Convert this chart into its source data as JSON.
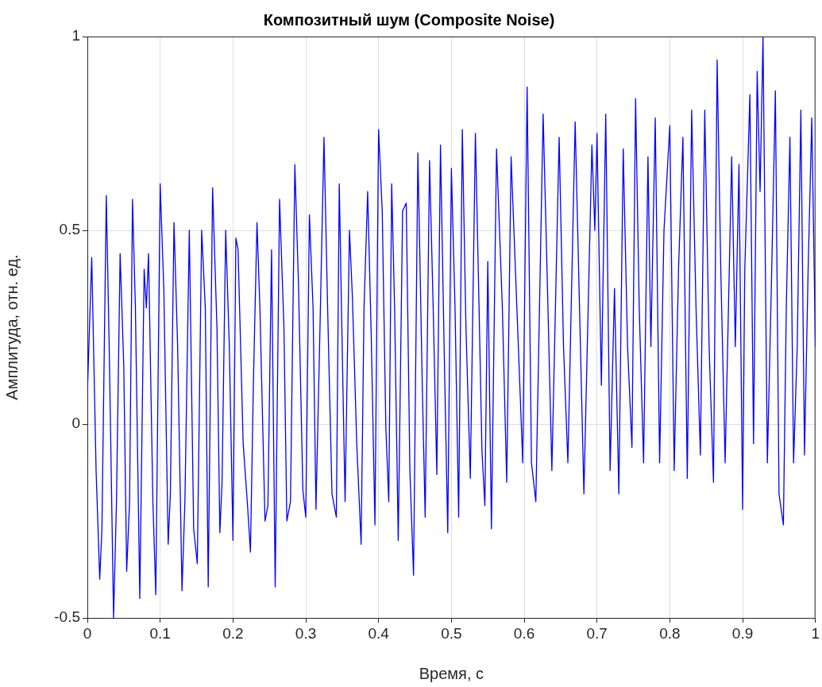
{
  "chart_data": {
    "type": "line",
    "title": "Композитный шум (Composite Noise)",
    "xlabel": "Время, с",
    "ylabel": "Амплитуда, отн. ед.",
    "xlim": [
      0,
      1
    ],
    "xticks": [
      0,
      0.1,
      0.2,
      0.3,
      0.4,
      0.5,
      0.6,
      0.7,
      0.8,
      0.9,
      1
    ],
    "ylim": [
      -0.5,
      1
    ],
    "yticks": [
      -0.5,
      0,
      0.5,
      1
    ],
    "grid": true,
    "legend": false,
    "marker": "none",
    "line_style": "solid",
    "x": [
      0,
      0.006,
      0.012,
      0.017,
      0.02,
      0.026,
      0.03,
      0.036,
      0.04,
      0.045,
      0.05,
      0.054,
      0.058,
      0.062,
      0.066,
      0.072,
      0.078,
      0.081,
      0.084,
      0.09,
      0.094,
      0.1,
      0.105,
      0.111,
      0.114,
      0.119,
      0.124,
      0.13,
      0.134,
      0.14,
      0.146,
      0.151,
      0.157,
      0.162,
      0.166,
      0.172,
      0.178,
      0.182,
      0.185,
      0.19,
      0.195,
      0.2,
      0.204,
      0.207,
      0.214,
      0.22,
      0.224,
      0.228,
      0.233,
      0.237,
      0.244,
      0.248,
      0.253,
      0.258,
      0.264,
      0.27,
      0.274,
      0.279,
      0.285,
      0.29,
      0.296,
      0.3,
      0.305,
      0.31,
      0.314,
      0.32,
      0.325,
      0.33,
      0.336,
      0.342,
      0.346,
      0.35,
      0.354,
      0.36,
      0.364,
      0.37,
      0.376,
      0.38,
      0.385,
      0.39,
      0.395,
      0.4,
      0.405,
      0.41,
      0.414,
      0.418,
      0.422,
      0.427,
      0.433,
      0.438,
      0.443,
      0.448,
      0.454,
      0.46,
      0.464,
      0.47,
      0.475,
      0.48,
      0.485,
      0.49,
      0.495,
      0.5,
      0.505,
      0.51,
      0.515,
      0.52,
      0.526,
      0.533,
      0.538,
      0.542,
      0.546,
      0.55,
      0.555,
      0.562,
      0.57,
      0.576,
      0.582,
      0.592,
      0.598,
      0.604,
      0.61,
      0.616,
      0.626,
      0.632,
      0.638,
      0.648,
      0.654,
      0.66,
      0.67,
      0.676,
      0.682,
      0.693,
      0.697,
      0.7,
      0.706,
      0.712,
      0.718,
      0.724,
      0.73,
      0.736,
      0.742,
      0.748,
      0.753,
      0.758,
      0.764,
      0.77,
      0.774,
      0.78,
      0.786,
      0.792,
      0.8,
      0.806,
      0.812,
      0.818,
      0.824,
      0.83,
      0.836,
      0.842,
      0.848,
      0.854,
      0.86,
      0.865,
      0.87,
      0.876,
      0.885,
      0.89,
      0.895,
      0.9,
      0.903,
      0.91,
      0.915,
      0.92,
      0.924,
      0.928,
      0.934,
      0.94,
      0.945,
      0.95,
      0.956,
      0.96,
      0.965,
      0.97,
      0.975,
      0.98,
      0.985,
      0.99,
      0.995,
      1
    ],
    "values": [
      0.08,
      0.43,
      -0.12,
      -0.4,
      -0.27,
      0.59,
      0.2,
      -0.5,
      -0.2,
      0.44,
      0.15,
      -0.38,
      -0.2,
      0.58,
      0.3,
      -0.45,
      0.4,
      0.3,
      0.44,
      -0.2,
      -0.44,
      0.62,
      0.35,
      -0.31,
      -0.18,
      0.52,
      0.2,
      -0.43,
      -0.2,
      0.5,
      -0.27,
      -0.36,
      0.5,
      0.3,
      -0.42,
      0.61,
      0.25,
      -0.28,
      -0.15,
      0.5,
      0.2,
      -0.3,
      0.48,
      0.45,
      -0.05,
      -0.21,
      -0.33,
      0.1,
      0.52,
      0.3,
      -0.25,
      -0.21,
      0.45,
      -0.42,
      0.58,
      0.25,
      -0.25,
      -0.2,
      0.67,
      0.36,
      -0.17,
      -0.24,
      0.54,
      0.3,
      -0.22,
      0.29,
      0.74,
      0.3,
      -0.18,
      -0.24,
      0.62,
      0.2,
      -0.2,
      0.5,
      0.33,
      -0.05,
      -0.31,
      0.3,
      0.6,
      0.22,
      -0.26,
      0.76,
      0.55,
      -0.01,
      -0.2,
      0.62,
      0.3,
      -0.3,
      0.55,
      0.57,
      -0.12,
      -0.39,
      0.7,
      0.1,
      -0.24,
      0.68,
      0.3,
      -0.13,
      0.72,
      0.2,
      -0.28,
      0.66,
      0.3,
      -0.24,
      0.76,
      0.25,
      -0.14,
      0.75,
      0.3,
      -0.07,
      -0.21,
      0.42,
      -0.27,
      0.71,
      0.3,
      -0.15,
      0.69,
      0.2,
      -0.1,
      0.87,
      -0.1,
      -0.2,
      0.8,
      0.35,
      -0.12,
      0.74,
      0.2,
      -0.1,
      0.78,
      0.3,
      -0.18,
      0.72,
      0.5,
      0.75,
      0.1,
      0.8,
      -0.12,
      0.35,
      -0.18,
      0.71,
      0.2,
      -0.06,
      0.84,
      0.3,
      -0.1,
      0.69,
      0.2,
      0.79,
      -0.1,
      0.5,
      0.77,
      -0.12,
      0.4,
      0.74,
      -0.14,
      0.81,
      0.3,
      -0.08,
      0.81,
      0.2,
      -0.15,
      0.94,
      0.4,
      -0.1,
      0.69,
      0.2,
      0.67,
      -0.22,
      0.4,
      0.85,
      -0.05,
      0.91,
      0.6,
      1.0,
      -0.1,
      0.4,
      0.86,
      -0.18,
      -0.26,
      0.3,
      0.74,
      -0.1,
      0.2,
      0.81,
      -0.08,
      0.4,
      0.79,
      0.2
    ],
    "color": "#0000ff"
  }
}
